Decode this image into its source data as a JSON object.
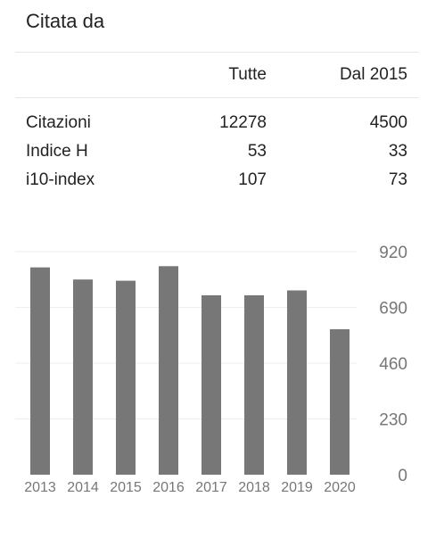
{
  "panel": {
    "title": "Citata da"
  },
  "table": {
    "headers": [
      "Tutte",
      "Dal 2015"
    ],
    "rows": [
      {
        "label": "Citazioni",
        "all": "12278",
        "since": "4500"
      },
      {
        "label": "Indice H",
        "all": "53",
        "since": "33"
      },
      {
        "label": "i10-index",
        "all": "107",
        "since": "73"
      }
    ]
  },
  "chart_data": {
    "type": "bar",
    "categories": [
      "2013",
      "2014",
      "2015",
      "2016",
      "2017",
      "2018",
      "2019",
      "2020"
    ],
    "values": [
      855,
      805,
      800,
      860,
      740,
      740,
      760,
      600
    ],
    "yticks": [
      "0",
      "230",
      "460",
      "690",
      "920"
    ],
    "ylim": [
      0,
      920
    ],
    "grid": true,
    "bar_color": "#777777",
    "grid_color": "#eeeeee",
    "tick_color": "#777777"
  }
}
